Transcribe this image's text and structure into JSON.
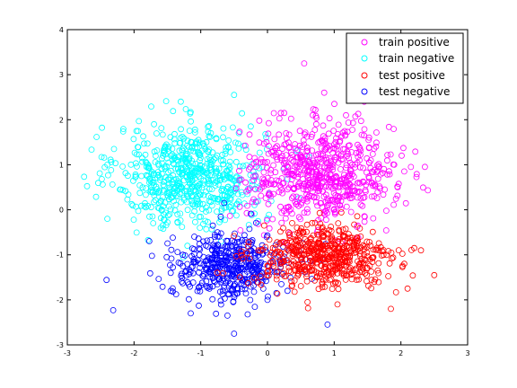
{
  "chart_data": {
    "type": "scatter",
    "title": "",
    "xlabel": "",
    "ylabel": "",
    "xlim": [
      -3,
      3
    ],
    "ylim": [
      -3,
      4
    ],
    "xticks": [
      "-3",
      "-2",
      "-1",
      "0",
      "1",
      "2",
      "3"
    ],
    "yticks": [
      "-3",
      "-2",
      "-1",
      "0",
      "1",
      "2",
      "3",
      "4"
    ],
    "grid": false,
    "legend_position": "top-right",
    "marker": "open-circle",
    "series": [
      {
        "name": "train positive",
        "color": "#ff00ff",
        "clusters": [
          {
            "cx": 0.8,
            "cy": 0.8,
            "sx": 0.55,
            "sy": 0.55,
            "count": 650
          }
        ],
        "points": [
          [
            0.55,
            3.25
          ],
          [
            0.85,
            2.6
          ],
          [
            1.45,
            2.4
          ],
          [
            0.25,
            2.15
          ],
          [
            1.9,
            1.0
          ],
          [
            2.05,
            0.85
          ],
          [
            2.15,
            0.95
          ],
          [
            1.95,
            0.5
          ],
          [
            0.2,
            2.15
          ],
          [
            1.6,
            0.3
          ]
        ]
      },
      {
        "name": "train negative",
        "color": "#00ffff",
        "clusters": [
          {
            "cx": -1.15,
            "cy": 0.75,
            "sx": 0.55,
            "sy": 0.55,
            "count": 650
          }
        ],
        "points": [
          [
            -0.5,
            2.55
          ],
          [
            -2.4,
            1.0
          ],
          [
            -2.4,
            -0.2
          ],
          [
            -2.3,
            1.35
          ],
          [
            -2.2,
            0.45
          ],
          [
            -0.25,
            1.85
          ],
          [
            -1.3,
            2.4
          ],
          [
            -1.7,
            1.9
          ],
          [
            -0.3,
            0.35
          ],
          [
            -1.6,
            -0.4
          ],
          [
            -1.2,
            -0.8
          ]
        ]
      },
      {
        "name": "test positive",
        "color": "#ff0000",
        "clusters": [
          {
            "cx": 0.85,
            "cy": -1.05,
            "sx": 0.5,
            "sy": 0.35,
            "count": 550
          }
        ],
        "points": [
          [
            2.5,
            -1.45
          ],
          [
            2.2,
            -0.85
          ],
          [
            2.3,
            -0.9
          ],
          [
            2.05,
            -1.2
          ],
          [
            1.85,
            -2.2
          ],
          [
            2.1,
            -1.75
          ],
          [
            1.05,
            -2.1
          ],
          [
            -0.05,
            -0.35
          ],
          [
            1.6,
            -1.6
          ],
          [
            0.6,
            -2.05
          ]
        ]
      },
      {
        "name": "test negative",
        "color": "#0000ff",
        "clusters": [
          {
            "cx": -0.55,
            "cy": -1.25,
            "sx": 0.45,
            "sy": 0.35,
            "count": 450
          }
        ],
        "points": [
          [
            -0.5,
            -2.75
          ],
          [
            0.9,
            -2.55
          ],
          [
            -1.15,
            -2.3
          ],
          [
            -0.6,
            -2.35
          ],
          [
            -1.45,
            -1.8
          ],
          [
            -1.45,
            -1.4
          ],
          [
            -0.75,
            -0.5
          ],
          [
            0.0,
            -2.0
          ],
          [
            -0.65,
            0.15
          ],
          [
            0.3,
            -1.8
          ]
        ]
      }
    ]
  }
}
